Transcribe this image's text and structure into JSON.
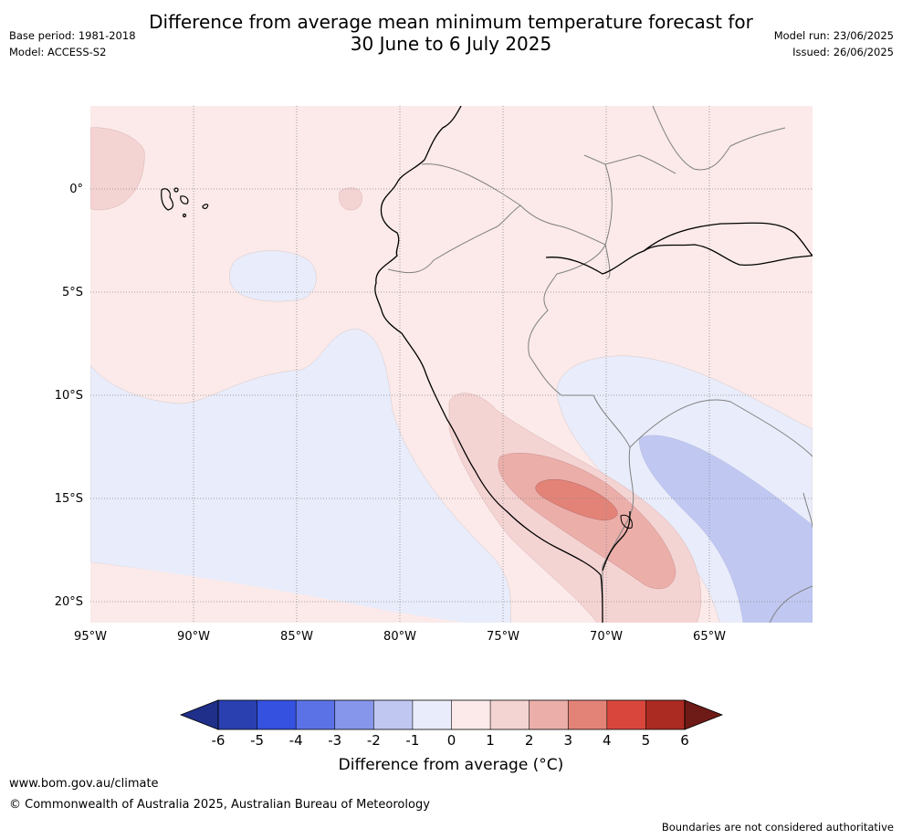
{
  "title_line1": "Difference from average mean minimum temperature forecast for",
  "title_line2": "30 June to 6 July 2025",
  "base_period": "Base period: 1981-2018",
  "model": "Model: ACCESS-S2",
  "model_run": "Model run: 23/06/2025",
  "issued": "Issued: 26/06/2025",
  "lat_labels": [
    "0°",
    "5°S",
    "10°S",
    "15°S",
    "20°S"
  ],
  "lon_labels": [
    "95°W",
    "90°W",
    "85°W",
    "80°W",
    "75°W",
    "70°W",
    "65°W"
  ],
  "colorbar": {
    "label": "Difference from average (°C)",
    "ticks": [
      "-6",
      "-5",
      "-4",
      "-3",
      "-2",
      "-1",
      "0",
      "1",
      "2",
      "3",
      "4",
      "5",
      "6"
    ],
    "colors": [
      "#1f2f8a",
      "#2a3fb0",
      "#3451e0",
      "#5b72e6",
      "#8696ea",
      "#c0c8f2",
      "#e9ecfa",
      "#fbeae9",
      "#f4d4d3",
      "#ebaea9",
      "#e38377",
      "#d9473c",
      "#ab2a22",
      "#6e1a16"
    ]
  },
  "footer_url": "www.bom.gov.au/climate",
  "footer_copyright": "© Commonwealth of Australia 2025, Australian Bureau of Meteorology",
  "footer_disclaimer": "Boundaries are not considered authoritative"
}
